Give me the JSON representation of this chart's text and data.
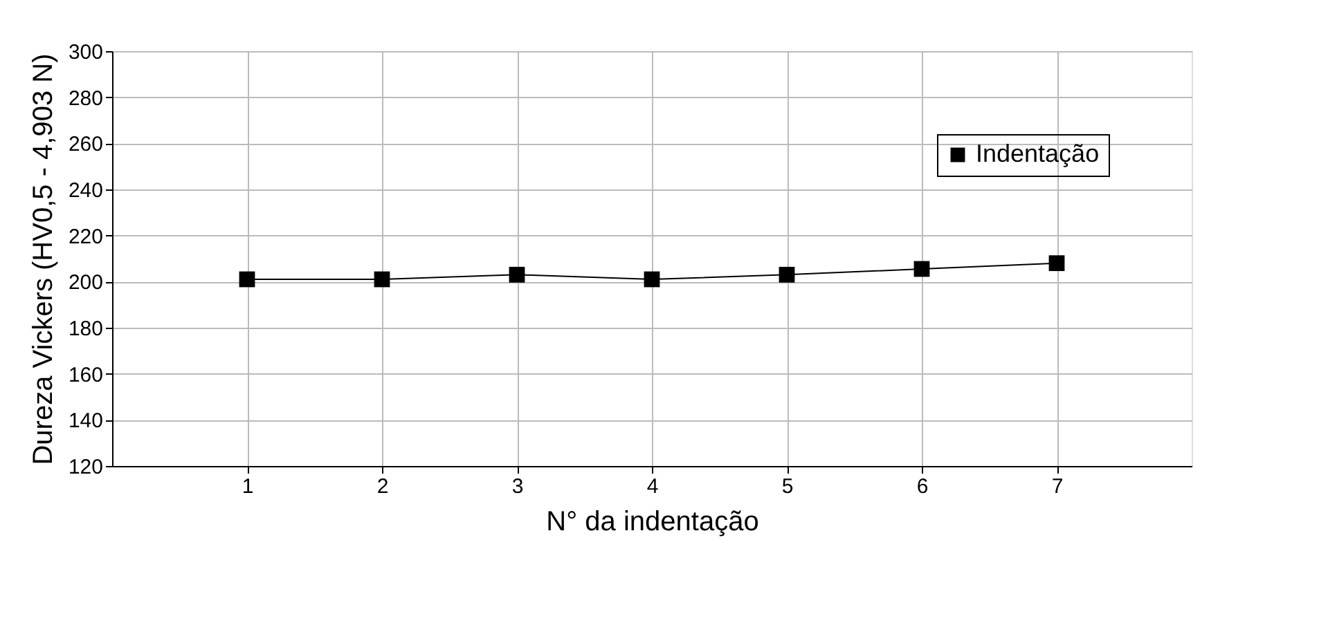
{
  "chart_data": {
    "type": "line",
    "xlabel": "N° da indentação",
    "ylabel": "Dureza Vickers (HV0,5 - 4,903 N)",
    "x": [
      1,
      2,
      3,
      4,
      5,
      6,
      7
    ],
    "series": [
      {
        "name": "Indentação",
        "color": "#000000",
        "values": [
          201,
          201,
          203,
          201,
          203,
          205.5,
          208
        ]
      }
    ],
    "xlim": [
      0,
      8
    ],
    "xticks": [
      1,
      2,
      3,
      4,
      5,
      6,
      7
    ],
    "ylim": [
      120,
      300
    ],
    "yticks": [
      120,
      140,
      160,
      180,
      200,
      220,
      240,
      260,
      280,
      300
    ],
    "grid": true,
    "legend": "top right",
    "marker": "square",
    "line_style": "solid"
  }
}
